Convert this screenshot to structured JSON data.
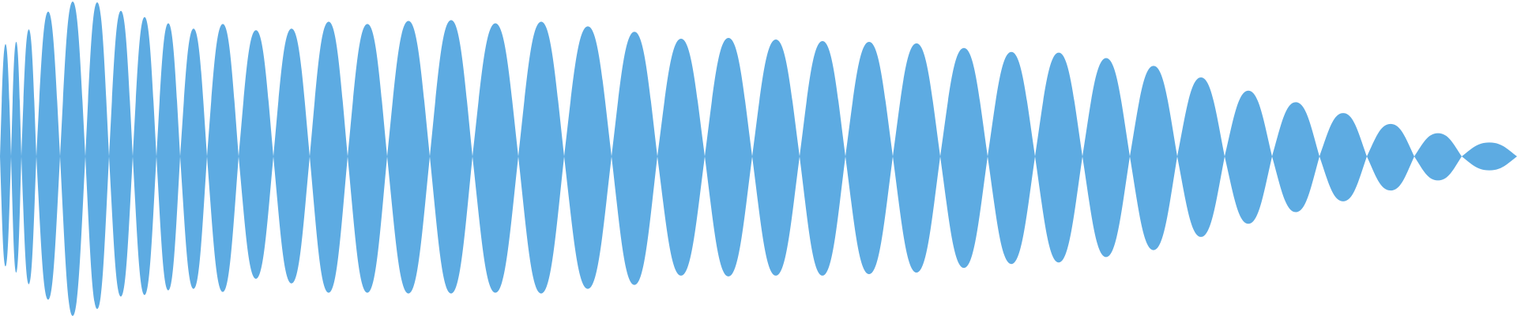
{
  "waveform": {
    "color": "#5dabe2",
    "background": "#ffffff",
    "lobes": [
      {
        "start": 0,
        "end": 14,
        "peak": 145,
        "trough": 142
      },
      {
        "start": 14,
        "end": 27,
        "peak": 148,
        "trough": 150
      },
      {
        "start": 27,
        "end": 46,
        "peak": 164,
        "trough": 165
      },
      {
        "start": 46,
        "end": 76,
        "peak": 187,
        "trough": 185
      },
      {
        "start": 76,
        "end": 108,
        "peak": 200,
        "trough": 206
      },
      {
        "start": 108,
        "end": 138,
        "peak": 199,
        "trough": 197
      },
      {
        "start": 138,
        "end": 168,
        "peak": 188,
        "trough": 181
      },
      {
        "start": 168,
        "end": 198,
        "peak": 180,
        "trough": 179
      },
      {
        "start": 198,
        "end": 228,
        "peak": 172,
        "trough": 173
      },
      {
        "start": 228,
        "end": 262,
        "peak": 165,
        "trough": 171
      },
      {
        "start": 262,
        "end": 302,
        "peak": 171,
        "trough": 175
      },
      {
        "start": 302,
        "end": 346,
        "peak": 163,
        "trough": 158
      },
      {
        "start": 346,
        "end": 392,
        "peak": 165,
        "trough": 164
      },
      {
        "start": 392,
        "end": 440,
        "peak": 174,
        "trough": 176
      },
      {
        "start": 440,
        "end": 490,
        "peak": 171,
        "trough": 176
      },
      {
        "start": 490,
        "end": 544,
        "peak": 175,
        "trough": 177
      },
      {
        "start": 544,
        "end": 598,
        "peak": 176,
        "trough": 177
      },
      {
        "start": 598,
        "end": 656,
        "peak": 172,
        "trough": 176
      },
      {
        "start": 656,
        "end": 714,
        "peak": 174,
        "trough": 177
      },
      {
        "start": 714,
        "end": 774,
        "peak": 168,
        "trough": 171
      },
      {
        "start": 774,
        "end": 832,
        "peak": 161,
        "trough": 166
      },
      {
        "start": 832,
        "end": 892,
        "peak": 152,
        "trough": 154
      },
      {
        "start": 892,
        "end": 952,
        "peak": 153,
        "trough": 155
      },
      {
        "start": 952,
        "end": 1012,
        "peak": 151,
        "trough": 154
      },
      {
        "start": 1012,
        "end": 1070,
        "peak": 149,
        "trough": 154
      },
      {
        "start": 1070,
        "end": 1130,
        "peak": 148,
        "trough": 152
      },
      {
        "start": 1130,
        "end": 1190,
        "peak": 146,
        "trough": 150
      },
      {
        "start": 1190,
        "end": 1250,
        "peak": 140,
        "trough": 144
      },
      {
        "start": 1250,
        "end": 1310,
        "peak": 135,
        "trough": 139
      },
      {
        "start": 1310,
        "end": 1370,
        "peak": 134,
        "trough": 137
      },
      {
        "start": 1370,
        "end": 1430,
        "peak": 127,
        "trough": 130
      },
      {
        "start": 1430,
        "end": 1490,
        "peak": 117,
        "trough": 121
      },
      {
        "start": 1490,
        "end": 1550,
        "peak": 102,
        "trough": 104
      },
      {
        "start": 1550,
        "end": 1610,
        "peak": 85,
        "trough": 87
      },
      {
        "start": 1610,
        "end": 1670,
        "peak": 70,
        "trough": 72
      },
      {
        "start": 1670,
        "end": 1730,
        "peak": 56,
        "trough": 58
      },
      {
        "start": 1730,
        "end": 1790,
        "peak": 42,
        "trough": 44
      },
      {
        "start": 1790,
        "end": 1850,
        "peak": 30,
        "trough": 31
      },
      {
        "start": 1850,
        "end": 1920,
        "peak": 18,
        "trough": 18
      }
    ]
  }
}
